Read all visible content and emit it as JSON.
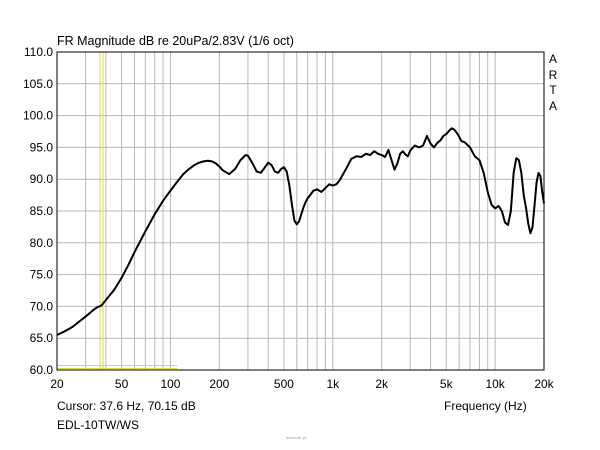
{
  "chart_data": {
    "type": "line",
    "title": "FR Magnitude dB re 20uPa/2.83V (1/6 oct)",
    "xlabel": "Frequency (Hz)",
    "ylabel": "",
    "x_scale": "log",
    "xlim": [
      20,
      20000
    ],
    "ylim": [
      60,
      110
    ],
    "grid": true,
    "x_ticks": [
      20,
      50,
      100,
      200,
      500,
      1000,
      2000,
      5000,
      10000,
      20000
    ],
    "x_tick_labels": [
      "20",
      "50",
      "100",
      "200",
      "500",
      "1k",
      "2k",
      "5k",
      "10k",
      "20k"
    ],
    "y_ticks": [
      60,
      65,
      70,
      75,
      80,
      85,
      90,
      95,
      100,
      105,
      110
    ],
    "y_tick_labels": [
      "60.0",
      "65.0",
      "70.0",
      "75.0",
      "80.0",
      "85.0",
      "90.0",
      "95.0",
      "100.0",
      "105.0",
      "110.0"
    ],
    "series": [
      {
        "x": [
          20,
          22,
          25,
          28,
          30,
          33,
          35,
          37.6,
          40,
          45,
          50,
          55,
          60,
          70,
          80,
          90,
          100,
          110,
          120,
          130,
          140,
          150,
          160,
          170,
          180,
          190,
          200,
          210,
          230,
          250,
          270,
          290,
          300,
          320,
          340,
          360,
          380,
          400,
          420,
          440,
          460,
          480,
          500,
          520,
          540,
          560,
          580,
          600,
          620,
          640,
          660,
          680,
          700,
          730,
          760,
          800,
          850,
          900,
          950,
          1000,
          1050,
          1100,
          1200,
          1300,
          1400,
          1500,
          1600,
          1700,
          1800,
          1900,
          2000,
          2100,
          2200,
          2300,
          2400,
          2500,
          2600,
          2700,
          2800,
          2900,
          3000,
          3200,
          3400,
          3600,
          3800,
          4000,
          4200,
          4400,
          4600,
          4800,
          5000,
          5200,
          5400,
          5600,
          5800,
          6000,
          6200,
          6500,
          7000,
          7500,
          8000,
          8500,
          9000,
          9500,
          10000,
          10500,
          11000,
          11500,
          12000,
          12500,
          13000,
          13500,
          14000,
          14500,
          15000,
          15500,
          16000,
          16500,
          17000,
          17500,
          18000,
          18500,
          19000,
          19500,
          20000
        ],
        "values": [
          65.5,
          66.0,
          66.8,
          67.8,
          68.4,
          69.3,
          69.8,
          70.15,
          71.0,
          72.6,
          74.5,
          76.5,
          78.5,
          81.8,
          84.5,
          86.6,
          88.2,
          89.6,
          90.8,
          91.6,
          92.2,
          92.6,
          92.8,
          92.9,
          92.8,
          92.5,
          92.0,
          91.4,
          90.8,
          91.6,
          93.0,
          93.8,
          93.7,
          92.5,
          91.2,
          91.0,
          91.8,
          92.6,
          92.2,
          91.2,
          91.0,
          91.6,
          91.9,
          91.2,
          89.0,
          86.0,
          83.5,
          82.9,
          83.4,
          84.5,
          85.6,
          86.4,
          87.0,
          87.6,
          88.2,
          88.4,
          88.0,
          88.6,
          89.2,
          89.0,
          89.2,
          89.8,
          91.5,
          93.2,
          93.6,
          93.5,
          94.0,
          93.8,
          94.4,
          94.0,
          93.8,
          93.5,
          94.6,
          93.0,
          91.5,
          92.5,
          94.0,
          94.4,
          93.9,
          93.6,
          94.5,
          95.3,
          95.0,
          95.3,
          96.8,
          95.6,
          95.0,
          95.7,
          96.1,
          96.8,
          97.1,
          97.6,
          98.0,
          97.8,
          97.3,
          96.7,
          96.0,
          95.8,
          95.0,
          93.6,
          93.0,
          91.0,
          88.0,
          86.0,
          85.4,
          85.8,
          85.0,
          83.2,
          82.8,
          85.0,
          91.0,
          93.3,
          93.0,
          91.0,
          87.5,
          85.5,
          83.0,
          81.5,
          82.5,
          86.0,
          89.5,
          91.0,
          90.5,
          88.0,
          86.2
        ]
      }
    ],
    "cursor": {
      "x": 37.6,
      "y": 70.15,
      "color": "#d9d94a"
    },
    "texts": {
      "cursor_readout": "Cursor: 37.6 Hz, 70.15 dB",
      "device": "EDL-10TW/WS",
      "brand": [
        "A",
        "R",
        "T",
        "A"
      ],
      "watermark": "www.lab..pl"
    },
    "colors": {
      "curve": "#000000",
      "grid": "#b8b8b8",
      "frame": "#000000",
      "cursor": "#d9d94a"
    }
  }
}
